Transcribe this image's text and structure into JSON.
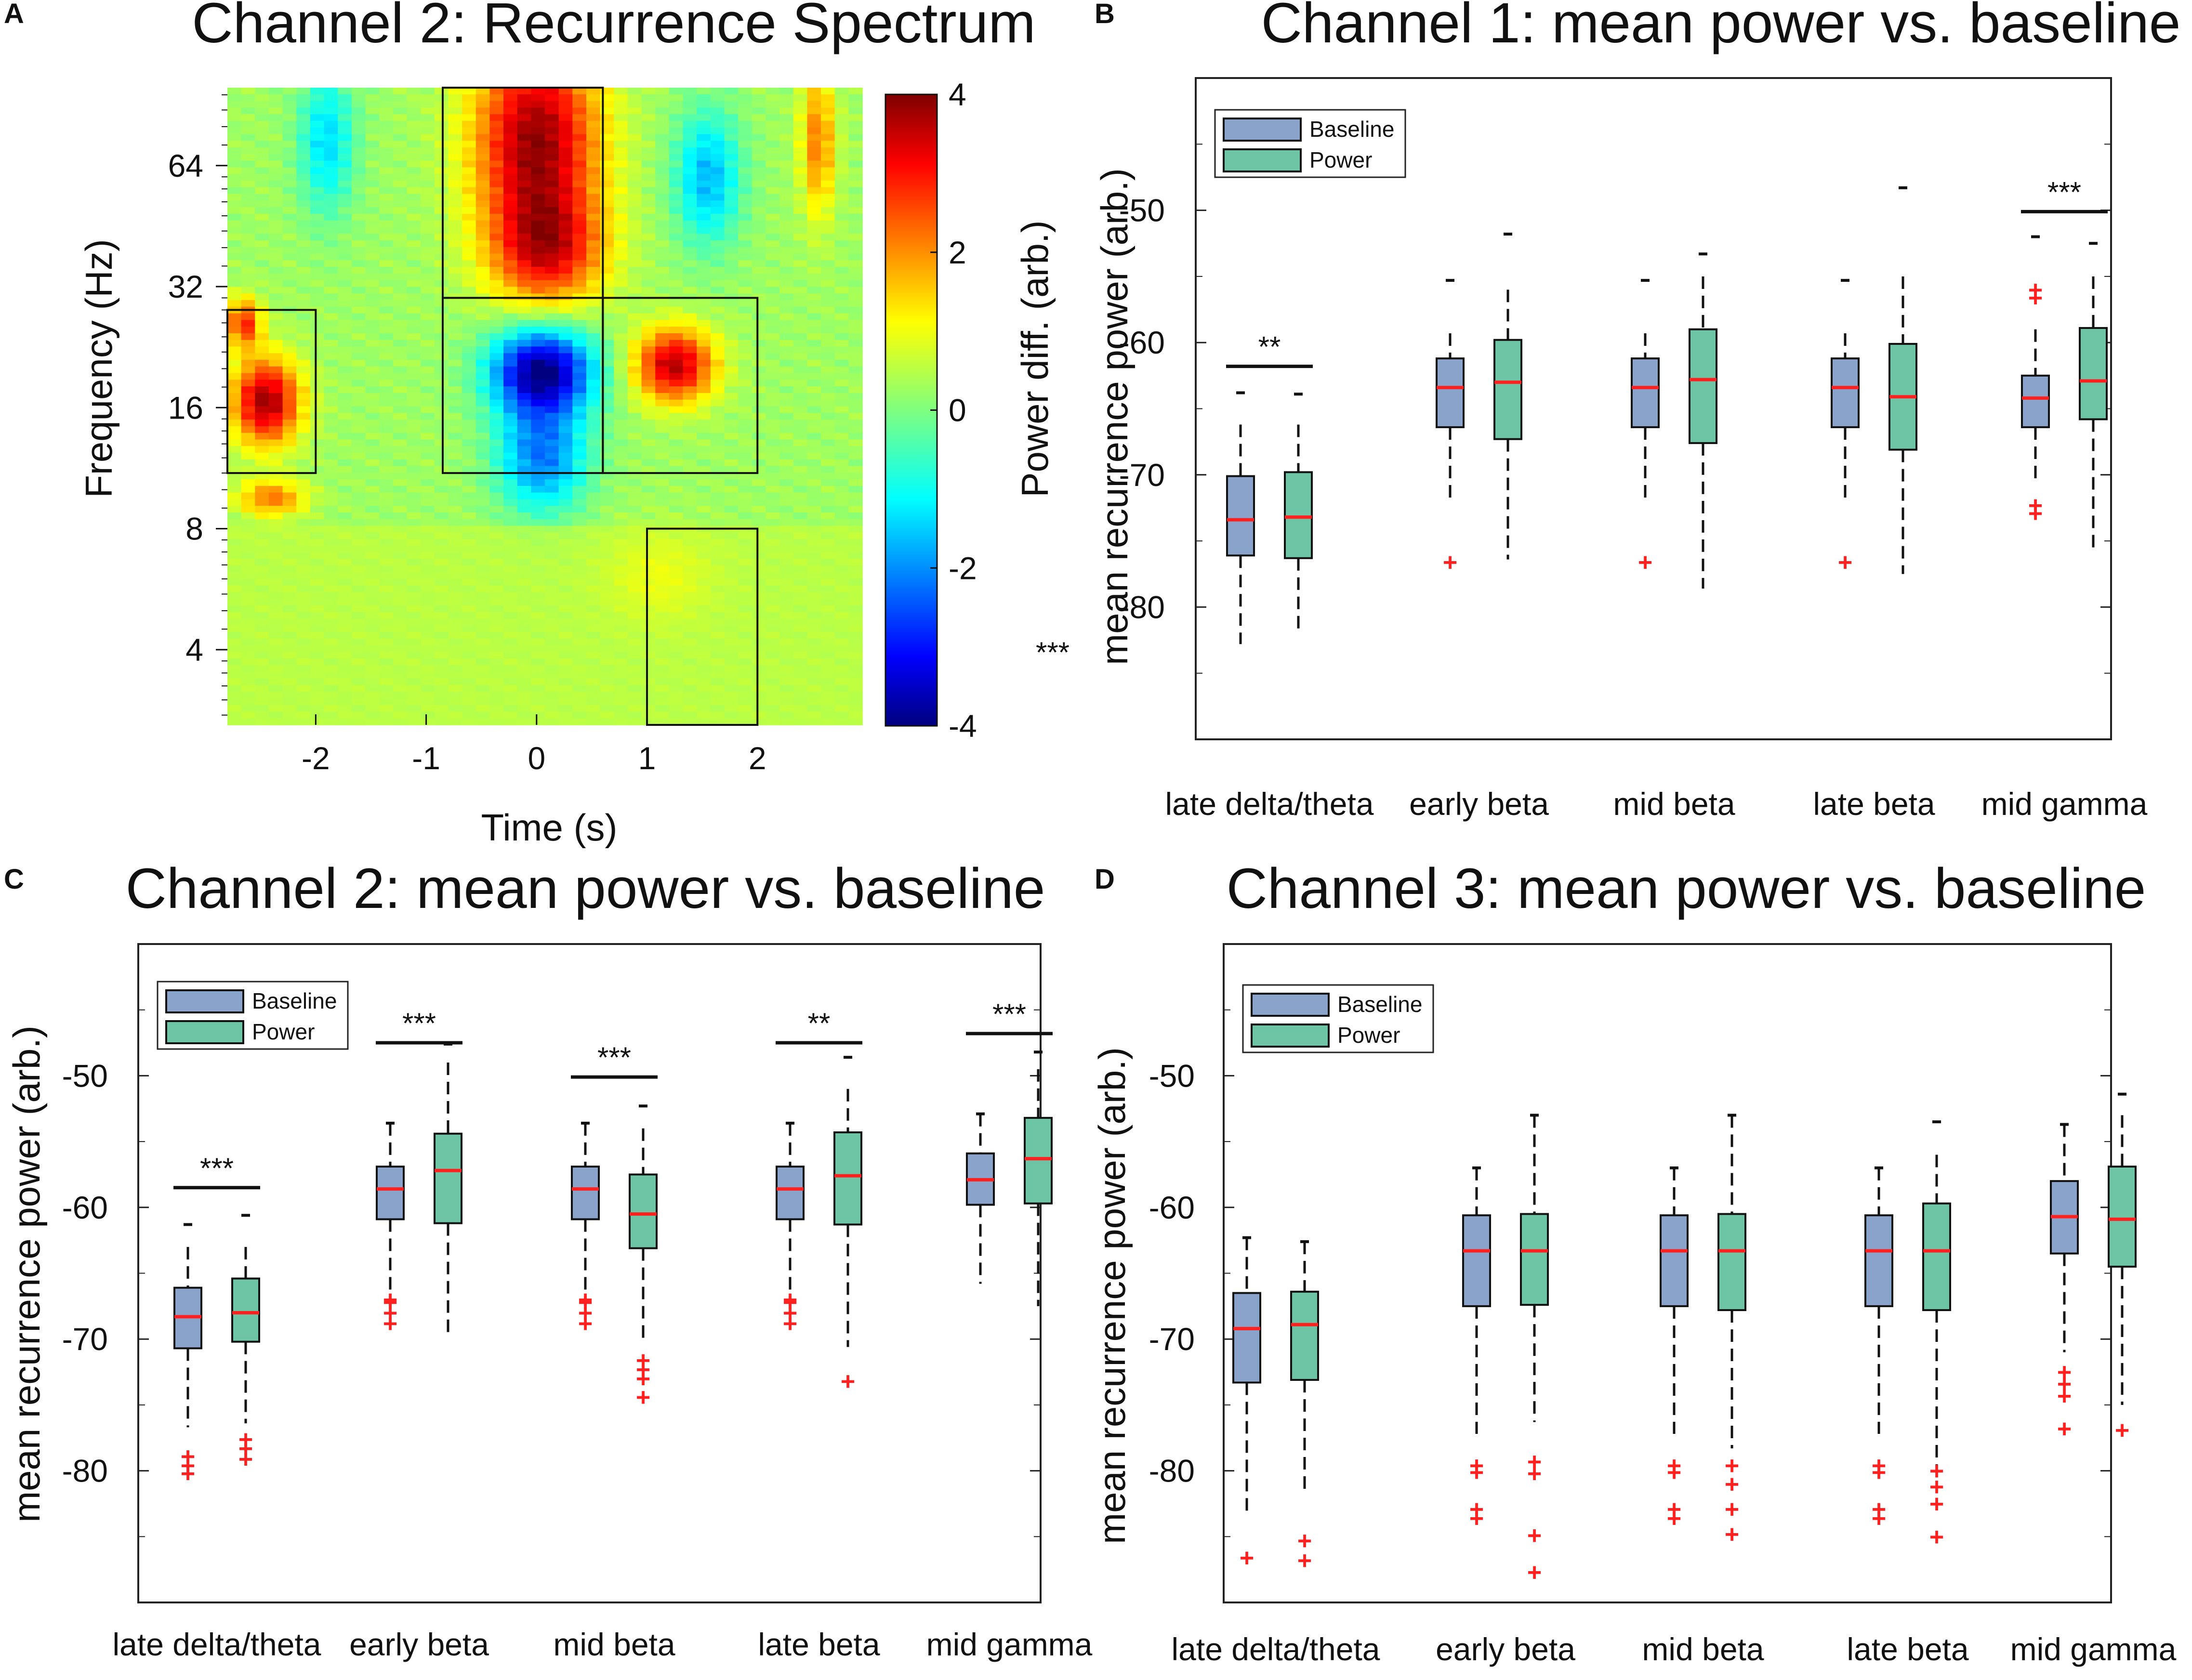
{
  "figure": {
    "panel_labels": [
      "A",
      "B",
      "C",
      "D"
    ],
    "extra_mark": "***"
  },
  "chart_data": [
    {
      "panel": "A",
      "type": "heatmap",
      "title": "Channel 2: Recurrence Spectrum",
      "xlabel": "Time (s)",
      "ylabel": "Frequency (Hz)",
      "xlim": [
        -2.8,
        2.95
      ],
      "ylim_hz": [
        2.6,
        100
      ],
      "yscale": "log2",
      "xticks": [
        -2,
        -1,
        0,
        1,
        2
      ],
      "xtick_labels": [
        "-2",
        "-1",
        "0",
        "1",
        "2"
      ],
      "yticks": [
        4,
        8,
        16,
        32,
        64
      ],
      "ytick_labels": [
        "4",
        "8",
        "16",
        "32",
        "64"
      ],
      "colorbar": {
        "label": "Power diff. (arb.)",
        "range": [
          -4,
          4
        ],
        "ticks": [
          4,
          2,
          0,
          -2,
          -4
        ],
        "tick_labels": [
          "4",
          "2",
          "0",
          "-2",
          "-4"
        ],
        "colormap": "jet"
      },
      "blobs": [
        {
          "t": 0.0,
          "f_log2": 6.2,
          "t_width": 0.55,
          "f_width": 0.85,
          "value": 3.6
        },
        {
          "t": 0.1,
          "f_log2": 5.3,
          "t_width": 0.5,
          "f_width": 0.45,
          "value": 2.4
        },
        {
          "t": 0.05,
          "f_log2": 4.3,
          "t_width": 0.45,
          "f_width": 0.35,
          "value": -4.2
        },
        {
          "t": 0.05,
          "f_log2": 3.6,
          "t_width": 0.4,
          "f_width": 0.45,
          "value": -2.3
        },
        {
          "t": 1.25,
          "f_log2": 4.35,
          "t_width": 0.35,
          "f_width": 0.3,
          "value": 3.3
        },
        {
          "t": -2.45,
          "f_log2": 4.05,
          "t_width": 0.3,
          "f_width": 0.35,
          "value": 3.5
        },
        {
          "t": -2.65,
          "f_log2": 4.7,
          "t_width": 0.15,
          "f_width": 0.2,
          "value": 2.5
        },
        {
          "t": 1.55,
          "f_log2": 5.9,
          "t_width": 0.3,
          "f_width": 0.55,
          "value": -1.8
        },
        {
          "t": 2.55,
          "f_log2": 6.2,
          "t_width": 0.15,
          "f_width": 0.6,
          "value": 1.8
        },
        {
          "t": -1.9,
          "f_log2": 6.2,
          "t_width": 0.25,
          "f_width": 0.6,
          "value": -1.5
        },
        {
          "t": -2.4,
          "f_log2": 3.25,
          "t_width": 0.3,
          "f_width": 0.15,
          "value": 1.8
        },
        {
          "t": 1.1,
          "f_log2": 2.6,
          "t_width": 0.45,
          "f_width": 0.35,
          "value": 0.9
        }
      ],
      "boxes": [
        {
          "t0": -2.8,
          "t1": -2.0,
          "f0": 11,
          "f1": 28
        },
        {
          "t0": -0.85,
          "t1": 0.6,
          "f0": 11,
          "f1": 30
        },
        {
          "t0": -0.85,
          "t1": 0.6,
          "f0": 30,
          "f1": 100
        },
        {
          "t0": 0.6,
          "t1": 2.0,
          "f0": 11,
          "f1": 30
        },
        {
          "t0": 1.0,
          "t1": 2.0,
          "f0": 2.6,
          "f1": 8
        }
      ]
    },
    {
      "panel": "B",
      "type": "box",
      "title": "Channel 1: mean power vs. baseline",
      "ylabel": "mean recurrence power (arb.)",
      "ylim": [
        -90,
        -40
      ],
      "yticks": [
        -80,
        -70,
        -60,
        -50
      ],
      "ytick_labels": [
        "-80",
        "-70",
        "-60",
        "-50"
      ],
      "categories": [
        "late delta/theta",
        "early beta",
        "mid beta",
        "late beta",
        "mid gamma"
      ],
      "legend": [
        "Baseline",
        "Power"
      ],
      "significance": [
        "**",
        "",
        "",
        "",
        "***"
      ],
      "sig_y": [
        -61.8,
        null,
        null,
        null,
        -50.1
      ],
      "series": [
        {
          "name": "Baseline",
          "stats": [
            {
              "wlo": -82.8,
              "q1": -76.1,
              "med": -73.4,
              "q3": -70.1,
              "whi": -66.2,
              "cap": -63.8,
              "out": []
            },
            {
              "wlo": -72.0,
              "q1": -66.4,
              "med": -63.4,
              "q3": -61.2,
              "whi": -59.3,
              "cap": -55.3,
              "out": [
                -76.6
              ]
            },
            {
              "wlo": -72.0,
              "q1": -66.4,
              "med": -63.4,
              "q3": -61.2,
              "whi": -59.3,
              "cap": -55.3,
              "out": [
                -76.6
              ]
            },
            {
              "wlo": -72.0,
              "q1": -66.4,
              "med": -63.4,
              "q3": -61.2,
              "whi": -59.3,
              "cap": -55.3,
              "out": [
                -76.6
              ]
            },
            {
              "wlo": -70.5,
              "q1": -66.4,
              "med": -64.2,
              "q3": -62.5,
              "whi": -59.0,
              "cap": -52.0,
              "out": [
                -56.0,
                -56.6,
                -72.3,
                -72.9
              ]
            }
          ]
        },
        {
          "name": "Power",
          "stats": [
            {
              "wlo": -81.8,
              "q1": -76.3,
              "med": -73.2,
              "q3": -69.8,
              "whi": -66.2,
              "cap": -63.9,
              "out": []
            },
            {
              "wlo": -76.4,
              "q1": -67.3,
              "med": -63.0,
              "q3": -59.8,
              "whi": -56.0,
              "cap": -51.8,
              "out": []
            },
            {
              "wlo": -78.6,
              "q1": -67.6,
              "med": -62.8,
              "q3": -59.0,
              "whi": -55.0,
              "cap": -53.3,
              "out": []
            },
            {
              "wlo": -77.5,
              "q1": -68.1,
              "med": -64.1,
              "q3": -60.1,
              "whi": -55.0,
              "cap": -48.3,
              "out": []
            },
            {
              "wlo": -75.9,
              "q1": -65.8,
              "med": -62.9,
              "q3": -58.9,
              "whi": -55.0,
              "cap": -52.5,
              "out": []
            }
          ]
        }
      ]
    },
    {
      "panel": "C",
      "type": "box",
      "title": "Channel 2: mean power vs. baseline",
      "ylabel": "mean recurrence power (arb.)",
      "ylim": [
        -90,
        -40
      ],
      "yticks": [
        -80,
        -70,
        -60,
        -50
      ],
      "ytick_labels": [
        "-80",
        "-70",
        "-60",
        "-50"
      ],
      "categories": [
        "late delta/theta",
        "early beta",
        "mid beta",
        "late beta",
        "mid gamma"
      ],
      "legend": [
        "Baseline",
        "Power"
      ],
      "significance": [
        "***",
        "***",
        "***",
        "**",
        "***"
      ],
      "sig_y": [
        -58.5,
        -47.5,
        -50.1,
        -47.5,
        -46.8
      ],
      "series": [
        {
          "name": "Baseline",
          "stats": [
            {
              "wlo": -76.7,
              "q1": -70.7,
              "med": -68.3,
              "q3": -66.1,
              "whi": -63.0,
              "cap": -61.3,
              "out": [
                -78.9,
                -79.6,
                -80.2
              ]
            },
            {
              "wlo": -66.8,
              "q1": -60.9,
              "med": -58.6,
              "q3": -56.9,
              "whi": -53.6,
              "cap": -53.6,
              "out": [
                -67.0,
                -67.2,
                -68.0,
                -68.8
              ]
            },
            {
              "wlo": -66.8,
              "q1": -60.9,
              "med": -58.6,
              "q3": -56.9,
              "whi": -53.6,
              "cap": -53.6,
              "out": [
                -67.0,
                -67.2,
                -68.0,
                -68.8
              ]
            },
            {
              "wlo": -66.8,
              "q1": -60.9,
              "med": -58.6,
              "q3": -56.9,
              "whi": -53.6,
              "cap": -53.6,
              "out": [
                -67.0,
                -67.2,
                -68.0,
                -68.8
              ]
            },
            {
              "wlo": -65.8,
              "q1": -59.8,
              "med": -57.9,
              "q3": -55.9,
              "whi": -52.9,
              "cap": -52.9,
              "out": []
            }
          ]
        },
        {
          "name": "Power",
          "stats": [
            {
              "wlo": -76.4,
              "q1": -70.2,
              "med": -68.0,
              "q3": -65.4,
              "whi": -63.0,
              "cap": -60.6,
              "out": [
                -77.6,
                -78.3,
                -79.1
              ]
            },
            {
              "wlo": -69.7,
              "q1": -61.2,
              "med": -57.2,
              "q3": -54.4,
              "whi": -49.0,
              "cap": -47.6,
              "out": []
            },
            {
              "wlo": -70.0,
              "q1": -63.1,
              "med": -60.5,
              "q3": -57.5,
              "whi": -54.0,
              "cap": -52.3,
              "out": [
                -71.6,
                -72.3,
                -73.0,
                -74.4
              ]
            },
            {
              "wlo": -70.6,
              "q1": -61.3,
              "med": -57.6,
              "q3": -54.3,
              "whi": -51.0,
              "cap": -48.6,
              "out": [
                -73.2
              ]
            },
            {
              "wlo": -67.5,
              "q1": -59.7,
              "med": -56.3,
              "q3": -53.2,
              "whi": -49.5,
              "cap": -48.2,
              "out": []
            }
          ]
        }
      ]
    },
    {
      "panel": "D",
      "type": "box",
      "title": "Channel 3: mean power vs. baseline",
      "ylabel": "mean recurrence power (arb.)",
      "ylim": [
        -90,
        -40
      ],
      "yticks": [
        -80,
        -70,
        -60,
        -50
      ],
      "ytick_labels": [
        "-80",
        "-70",
        "-60",
        "-50"
      ],
      "categories": [
        "late delta/theta",
        "early beta",
        "mid beta",
        "late beta",
        "mid gamma"
      ],
      "legend": [
        "Baseline",
        "Power"
      ],
      "significance": [
        "",
        "",
        "",
        "",
        ""
      ],
      "sig_y": [
        null,
        null,
        null,
        null,
        null
      ],
      "series": [
        {
          "name": "Baseline",
          "stats": [
            {
              "wlo": -83.3,
              "q1": -73.3,
              "med": -69.2,
              "q3": -66.5,
              "whi": -62.3,
              "cap": -62.3,
              "out": [
                -86.6
              ]
            },
            {
              "wlo": -77.2,
              "q1": -67.5,
              "med": -63.3,
              "q3": -60.6,
              "whi": -57.0,
              "cap": -57.0,
              "out": [
                -79.6,
                -80.1,
                -82.9,
                -83.6
              ]
            },
            {
              "wlo": -77.2,
              "q1": -67.5,
              "med": -63.3,
              "q3": -60.6,
              "whi": -57.0,
              "cap": -57.0,
              "out": [
                -79.6,
                -80.1,
                -82.9,
                -83.6
              ]
            },
            {
              "wlo": -77.2,
              "q1": -67.5,
              "med": -63.3,
              "q3": -60.6,
              "whi": -57.0,
              "cap": -57.0,
              "out": [
                -79.6,
                -80.1,
                -82.9,
                -83.6
              ]
            },
            {
              "wlo": -71.0,
              "q1": -63.5,
              "med": -60.7,
              "q3": -58.0,
              "whi": -53.7,
              "cap": -53.7,
              "out": [
                -72.5,
                -73.4,
                -74.3,
                -76.8
              ]
            }
          ]
        },
        {
          "name": "Power",
          "stats": [
            {
              "wlo": -81.8,
              "q1": -73.1,
              "med": -68.9,
              "q3": -66.4,
              "whi": -62.6,
              "cap": -62.6,
              "out": [
                -85.3,
                -86.8
              ]
            },
            {
              "wlo": -76.3,
              "q1": -67.4,
              "med": -63.3,
              "q3": -60.5,
              "whi": -53.0,
              "cap": -53.0,
              "out": [
                -79.3,
                -80.2,
                -84.9,
                -87.7
              ]
            },
            {
              "wlo": -78.3,
              "q1": -67.8,
              "med": -63.3,
              "q3": -60.5,
              "whi": -53.0,
              "cap": -53.0,
              "out": [
                -79.6,
                -81.0,
                -82.9,
                -84.8
              ]
            },
            {
              "wlo": -79.6,
              "q1": -67.8,
              "med": -63.3,
              "q3": -59.7,
              "whi": -56.0,
              "cap": -53.5,
              "out": [
                -80.0,
                -81.2,
                -82.5,
                -85.0
              ]
            },
            {
              "wlo": -75.0,
              "q1": -64.5,
              "med": -60.9,
              "q3": -56.9,
              "whi": -53.0,
              "cap": -51.4,
              "out": [
                -76.9
              ]
            }
          ]
        }
      ]
    }
  ]
}
